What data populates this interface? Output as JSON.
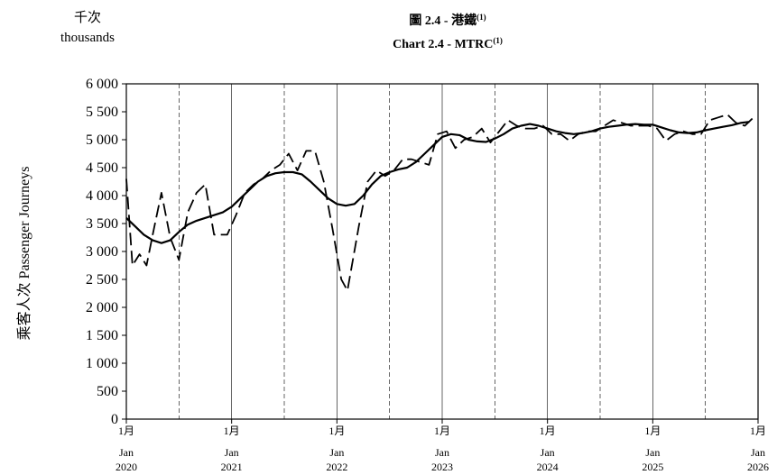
{
  "chart_data": {
    "type": "line",
    "title_zh": "圖 2.4 -  港鐵",
    "title_en": "Chart 2.4 -  MTRC",
    "title_sup": "(1)",
    "unit_zh": "千次",
    "unit_en": "thousands",
    "ylabel": "乘客人次  Passenger Journeys",
    "ylim": [
      0,
      6000
    ],
    "yticks": [
      "0",
      "500",
      "1 000",
      "1 500",
      "2 000",
      "2 500",
      "3 000",
      "3 500",
      "4 000",
      "4 500",
      "5 000",
      "5 500",
      "6 000"
    ],
    "ytick_values": [
      0,
      500,
      1000,
      1500,
      2000,
      2500,
      3000,
      3500,
      4000,
      4500,
      5000,
      5500,
      6000
    ],
    "xlim": [
      0,
      72
    ],
    "xticks": [
      {
        "zh": "1月",
        "en": "Jan",
        "year": "2020",
        "x": 0
      },
      {
        "zh": "1月",
        "en": "Jan",
        "year": "2021",
        "x": 12
      },
      {
        "zh": "1月",
        "en": "Jan",
        "year": "2022",
        "x": 24
      },
      {
        "zh": "1月",
        "en": "Jan",
        "year": "2023",
        "x": 36
      },
      {
        "zh": "1月",
        "en": "Jan",
        "year": "2024",
        "x": 48
      },
      {
        "zh": "1月",
        "en": "Jan",
        "year": "2025",
        "x": 60
      },
      {
        "zh": "1月",
        "en": "Jan",
        "year": "2026",
        "x": 72
      }
    ],
    "gridlines_solid_x": [
      12,
      24,
      36,
      48,
      60
    ],
    "gridlines_dashed_x": [
      6,
      18,
      30,
      42,
      54,
      66
    ],
    "series": [
      {
        "style": "dashed",
        "points": [
          [
            0,
            4300
          ],
          [
            0.7,
            2750
          ],
          [
            1.5,
            2950
          ],
          [
            2.3,
            2750
          ],
          [
            3,
            3300
          ],
          [
            4,
            4050
          ],
          [
            5,
            3250
          ],
          [
            6,
            2850
          ],
          [
            7,
            3700
          ],
          [
            8,
            4050
          ],
          [
            9,
            4200
          ],
          [
            10,
            3300
          ],
          [
            11.5,
            3300
          ],
          [
            12.5,
            3650
          ],
          [
            13.5,
            4050
          ],
          [
            14.5,
            4200
          ],
          [
            15.5,
            4300
          ],
          [
            16.5,
            4450
          ],
          [
            17.5,
            4550
          ],
          [
            18.5,
            4750
          ],
          [
            19.5,
            4450
          ],
          [
            20.5,
            4800
          ],
          [
            21.5,
            4800
          ],
          [
            22.5,
            4250
          ],
          [
            23.5,
            3400
          ],
          [
            24.5,
            2500
          ],
          [
            25.2,
            2300
          ],
          [
            26.5,
            3450
          ],
          [
            27.5,
            4250
          ],
          [
            28.5,
            4450
          ],
          [
            29.5,
            4350
          ],
          [
            30.5,
            4450
          ],
          [
            31.5,
            4650
          ],
          [
            32.5,
            4650
          ],
          [
            33.5,
            4600
          ],
          [
            34.5,
            4550
          ],
          [
            35.5,
            5100
          ],
          [
            36.5,
            5150
          ],
          [
            37.5,
            4850
          ],
          [
            38.5,
            5000
          ],
          [
            39.5,
            5050
          ],
          [
            40.5,
            5200
          ],
          [
            41.5,
            4950
          ],
          [
            42.5,
            5150
          ],
          [
            43.5,
            5350
          ],
          [
            44.5,
            5250
          ],
          [
            45.5,
            5200
          ],
          [
            46.5,
            5200
          ],
          [
            47.5,
            5250
          ],
          [
            48.5,
            5100
          ],
          [
            49.5,
            5100
          ],
          [
            50.5,
            4980
          ],
          [
            51.5,
            5100
          ],
          [
            52.5,
            5150
          ],
          [
            53.5,
            5150
          ],
          [
            54.5,
            5250
          ],
          [
            55.5,
            5350
          ],
          [
            56.5,
            5300
          ],
          [
            57.5,
            5250
          ],
          [
            58.5,
            5250
          ],
          [
            59.5,
            5250
          ],
          [
            60.5,
            5200
          ],
          [
            61.5,
            4980
          ],
          [
            62.5,
            5100
          ],
          [
            63.5,
            5150
          ],
          [
            64.5,
            5100
          ],
          [
            65.5,
            5100
          ],
          [
            66.5,
            5350
          ],
          [
            67.5,
            5400
          ],
          [
            68.5,
            5450
          ],
          [
            69.5,
            5300
          ],
          [
            70.5,
            5250
          ],
          [
            71.5,
            5400
          ]
        ]
      },
      {
        "style": "solid",
        "points": [
          [
            0,
            3600
          ],
          [
            1,
            3450
          ],
          [
            2,
            3300
          ],
          [
            3,
            3200
          ],
          [
            4,
            3150
          ],
          [
            5,
            3200
          ],
          [
            6,
            3350
          ],
          [
            7,
            3480
          ],
          [
            8,
            3550
          ],
          [
            9,
            3600
          ],
          [
            10,
            3650
          ],
          [
            11,
            3700
          ],
          [
            12,
            3800
          ],
          [
            13,
            3950
          ],
          [
            14,
            4100
          ],
          [
            15,
            4250
          ],
          [
            16,
            4350
          ],
          [
            17,
            4400
          ],
          [
            18,
            4420
          ],
          [
            19,
            4420
          ],
          [
            20,
            4380
          ],
          [
            21,
            4250
          ],
          [
            22,
            4100
          ],
          [
            23,
            3950
          ],
          [
            24,
            3850
          ],
          [
            25,
            3820
          ],
          [
            26,
            3850
          ],
          [
            27,
            4000
          ],
          [
            28,
            4200
          ],
          [
            29,
            4350
          ],
          [
            30,
            4420
          ],
          [
            31,
            4470
          ],
          [
            32,
            4500
          ],
          [
            33,
            4600
          ],
          [
            34,
            4750
          ],
          [
            35,
            4900
          ],
          [
            36,
            5050
          ],
          [
            37,
            5100
          ],
          [
            38,
            5080
          ],
          [
            39,
            5000
          ],
          [
            40,
            4970
          ],
          [
            41,
            4960
          ],
          [
            42,
            5020
          ],
          [
            43,
            5100
          ],
          [
            44,
            5200
          ],
          [
            45,
            5250
          ],
          [
            46,
            5280
          ],
          [
            47,
            5250
          ],
          [
            48,
            5200
          ],
          [
            49,
            5150
          ],
          [
            50,
            5120
          ],
          [
            51,
            5100
          ],
          [
            52,
            5120
          ],
          [
            53,
            5150
          ],
          [
            54,
            5200
          ],
          [
            55,
            5230
          ],
          [
            56,
            5250
          ],
          [
            57,
            5270
          ],
          [
            58,
            5280
          ],
          [
            59,
            5270
          ],
          [
            60,
            5270
          ],
          [
            61,
            5220
          ],
          [
            62,
            5170
          ],
          [
            63,
            5130
          ],
          [
            64,
            5120
          ],
          [
            65,
            5130
          ],
          [
            66,
            5170
          ],
          [
            67,
            5200
          ],
          [
            68,
            5230
          ],
          [
            69,
            5260
          ],
          [
            70,
            5300
          ],
          [
            71,
            5320
          ]
        ]
      }
    ]
  }
}
